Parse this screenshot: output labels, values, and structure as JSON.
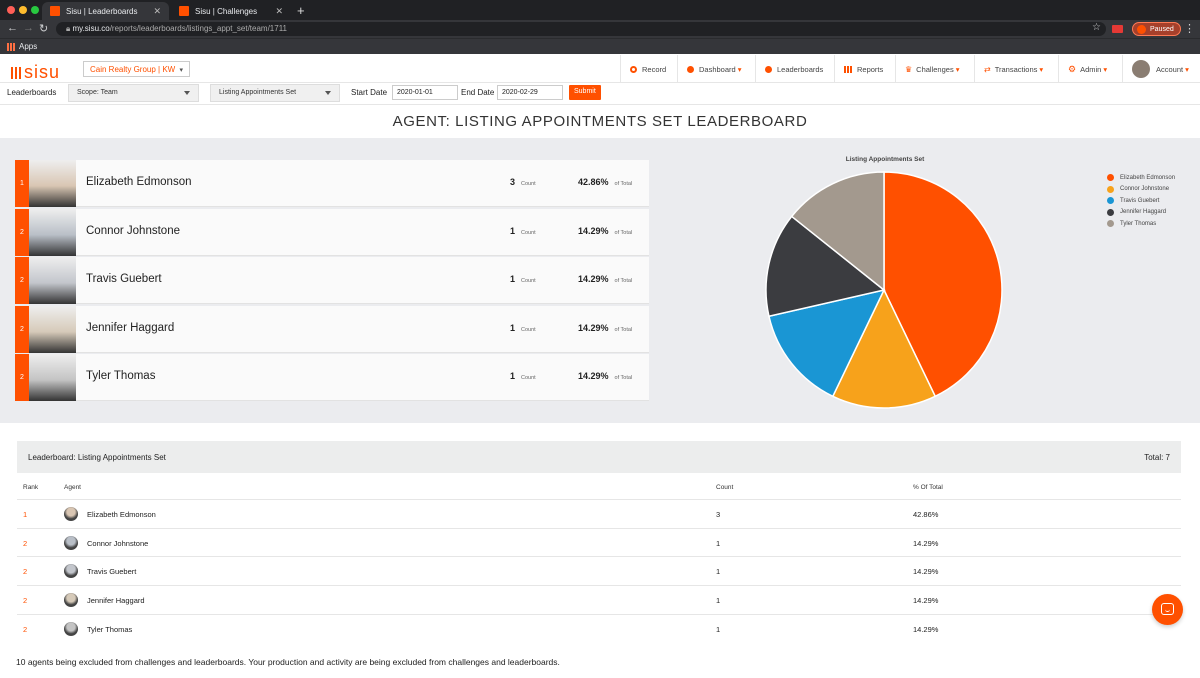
{
  "browser": {
    "tabs": [
      {
        "label": "Sisu | Leaderboards",
        "active": true
      },
      {
        "label": "Sisu | Challenges",
        "active": false
      }
    ],
    "new_tab": "+",
    "url_host": "my.sisu.co",
    "url_path": "/reports/leaderboards/listings_appt_set/team/1711",
    "paused": "Paused",
    "bookmark": "Apps"
  },
  "header": {
    "logo": "sisu",
    "group": "Cain Realty Group | KW",
    "nav": [
      {
        "label": "Record",
        "icon": "record-icon"
      },
      {
        "label": "Dashboard",
        "icon": "dashboard-icon",
        "dropdown": true
      },
      {
        "label": "Leaderboards",
        "icon": "leaderboards-icon"
      },
      {
        "label": "Reports",
        "icon": "reports-icon"
      },
      {
        "label": "Challenges",
        "icon": "trophy-icon",
        "dropdown": true
      },
      {
        "label": "Transactions",
        "icon": "transactions-icon",
        "dropdown": true
      },
      {
        "label": "Admin",
        "icon": "gear-icon",
        "dropdown": true
      },
      {
        "label": "Account",
        "icon": "avatar",
        "dropdown": true
      }
    ]
  },
  "filters": {
    "section": "Leaderboards",
    "scope": "Scope: Team",
    "metric": "Listing Appointments Set",
    "start_label": "Start Date",
    "start_value": "2020-01-01",
    "end_label": "End Date",
    "end_value": "2020-02-29",
    "submit": "Submit"
  },
  "page_title": "AGENT: LISTING APPOINTMENTS SET LEADERBOARD",
  "count_suffix": "Count",
  "pct_suffix": "of Total",
  "agents": [
    {
      "rank": "1",
      "name": "Elizabeth Edmonson",
      "count": "3",
      "pct": "42.86%"
    },
    {
      "rank": "2",
      "name": "Connor Johnstone",
      "count": "1",
      "pct": "14.29%"
    },
    {
      "rank": "2",
      "name": "Travis Guebert",
      "count": "1",
      "pct": "14.29%"
    },
    {
      "rank": "2",
      "name": "Jennifer Haggard",
      "count": "1",
      "pct": "14.29%"
    },
    {
      "rank": "2",
      "name": "Tyler Thomas",
      "count": "1",
      "pct": "14.29%"
    }
  ],
  "chart_data": {
    "type": "pie",
    "title": "Listing Appointments Set",
    "categories": [
      "Elizabeth Edmonson",
      "Connor Johnstone",
      "Travis Guebert",
      "Jennifer Haggard",
      "Tyler Thomas"
    ],
    "values": [
      3,
      1,
      1,
      1,
      1
    ],
    "colors": [
      "#ff5000",
      "#f7a21b",
      "#1a96d4",
      "#3b3c40",
      "#a3998e"
    ],
    "legend": "right"
  },
  "table": {
    "title": "Leaderboard: Listing Appointments Set",
    "total": "Total: 7",
    "columns": [
      "Rank",
      "Agent",
      "Count",
      "% Of Total"
    ]
  },
  "footnote": "10 agents being excluded from challenges and leaderboards. Your production and activity are being excluded from challenges and leaderboards."
}
